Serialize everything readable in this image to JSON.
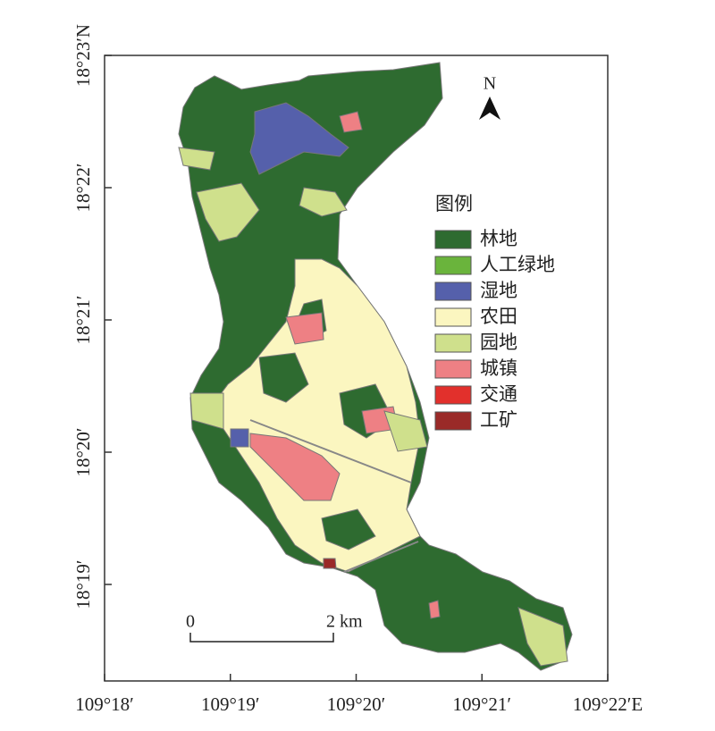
{
  "map": {
    "x_ticks": [
      "109°18′",
      "109°19′",
      "109°20′",
      "109°21′",
      "109°22′E"
    ],
    "y_ticks": [
      "18°23′N",
      "18°22′",
      "18°21′",
      "18°20′",
      "18°19′"
    ],
    "north": "N",
    "legend": {
      "title": "图例",
      "items": [
        {
          "label": "林地",
          "color": "#2e6b30"
        },
        {
          "label": "人工绿地",
          "color": "#6ab43c"
        },
        {
          "label": "湿地",
          "color": "#5560ab"
        },
        {
          "label": "农田",
          "color": "#fbf6c0"
        },
        {
          "label": "园地",
          "color": "#cfe08c"
        },
        {
          "label": "城镇",
          "color": "#ee8084"
        },
        {
          "label": "交通",
          "color": "#e2302c"
        },
        {
          "label": "工矿",
          "color": "#9a2a28"
        }
      ]
    },
    "scale_bar": {
      "start": "0",
      "end": "2 km"
    }
  }
}
